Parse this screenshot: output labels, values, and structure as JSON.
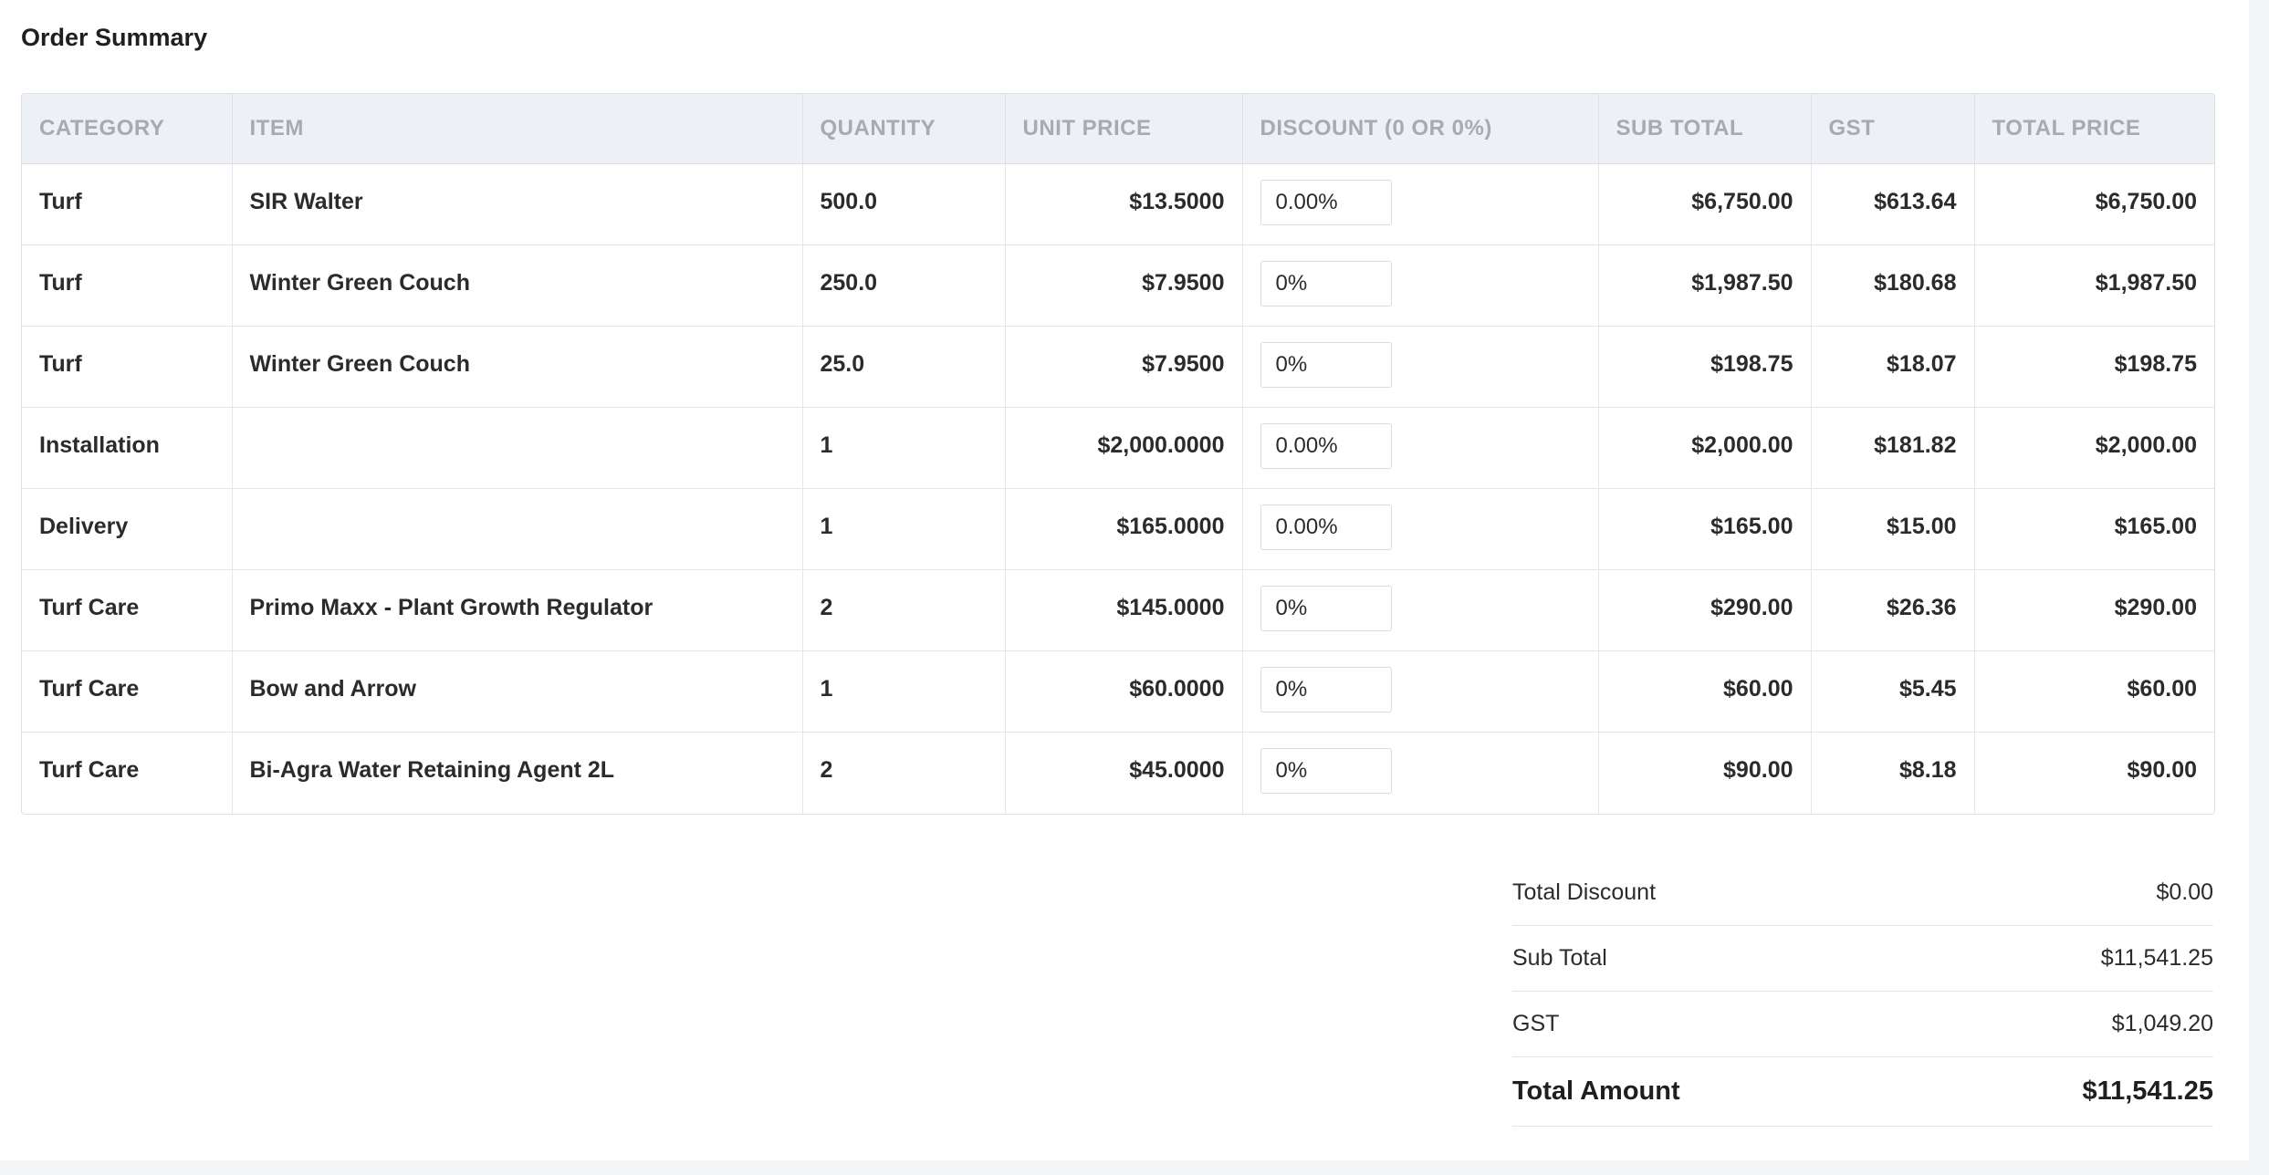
{
  "title": "Order Summary",
  "columns": {
    "category": "CATEGORY",
    "item": "ITEM",
    "quantity": "QUANTITY",
    "unit_price": "UNIT PRICE",
    "discount": "DISCOUNT (0 OR 0%)",
    "sub_total": "SUB TOTAL",
    "gst": "GST",
    "total_price": "TOTAL PRICE"
  },
  "rows": [
    {
      "category": "Turf",
      "item": "SIR Walter",
      "quantity": "500.0",
      "unit_price": "$13.5000",
      "discount": "0.00%",
      "sub_total": "$6,750.00",
      "gst": "$613.64",
      "total_price": "$6,750.00"
    },
    {
      "category": "Turf",
      "item": "Winter Green Couch",
      "quantity": "250.0",
      "unit_price": "$7.9500",
      "discount": "0%",
      "sub_total": "$1,987.50",
      "gst": "$180.68",
      "total_price": "$1,987.50"
    },
    {
      "category": "Turf",
      "item": "Winter Green Couch",
      "quantity": "25.0",
      "unit_price": "$7.9500",
      "discount": "0%",
      "sub_total": "$198.75",
      "gst": "$18.07",
      "total_price": "$198.75"
    },
    {
      "category": "Installation",
      "item": "",
      "quantity": "1",
      "unit_price": "$2,000.0000",
      "discount": "0.00%",
      "sub_total": "$2,000.00",
      "gst": "$181.82",
      "total_price": "$2,000.00"
    },
    {
      "category": "Delivery",
      "item": "",
      "quantity": "1",
      "unit_price": "$165.0000",
      "discount": "0.00%",
      "sub_total": "$165.00",
      "gst": "$15.00",
      "total_price": "$165.00"
    },
    {
      "category": "Turf Care",
      "item": "Primo Maxx - Plant Growth Regulator",
      "quantity": "2",
      "unit_price": "$145.0000",
      "discount": "0%",
      "sub_total": "$290.00",
      "gst": "$26.36",
      "total_price": "$290.00"
    },
    {
      "category": "Turf Care",
      "item": "Bow and Arrow",
      "quantity": "1",
      "unit_price": "$60.0000",
      "discount": "0%",
      "sub_total": "$60.00",
      "gst": "$5.45",
      "total_price": "$60.00"
    },
    {
      "category": "Turf Care",
      "item": "Bi-Agra Water Retaining Agent 2L",
      "quantity": "2",
      "unit_price": "$45.0000",
      "discount": "0%",
      "sub_total": "$90.00",
      "gst": "$8.18",
      "total_price": "$90.00"
    }
  ],
  "totals": {
    "total_discount_label": "Total Discount",
    "total_discount_value": "$0.00",
    "sub_total_label": "Sub Total",
    "sub_total_value": "$11,541.25",
    "gst_label": "GST",
    "gst_value": "$1,049.20",
    "total_amount_label": "Total Amount",
    "total_amount_value": "$11,541.25"
  }
}
